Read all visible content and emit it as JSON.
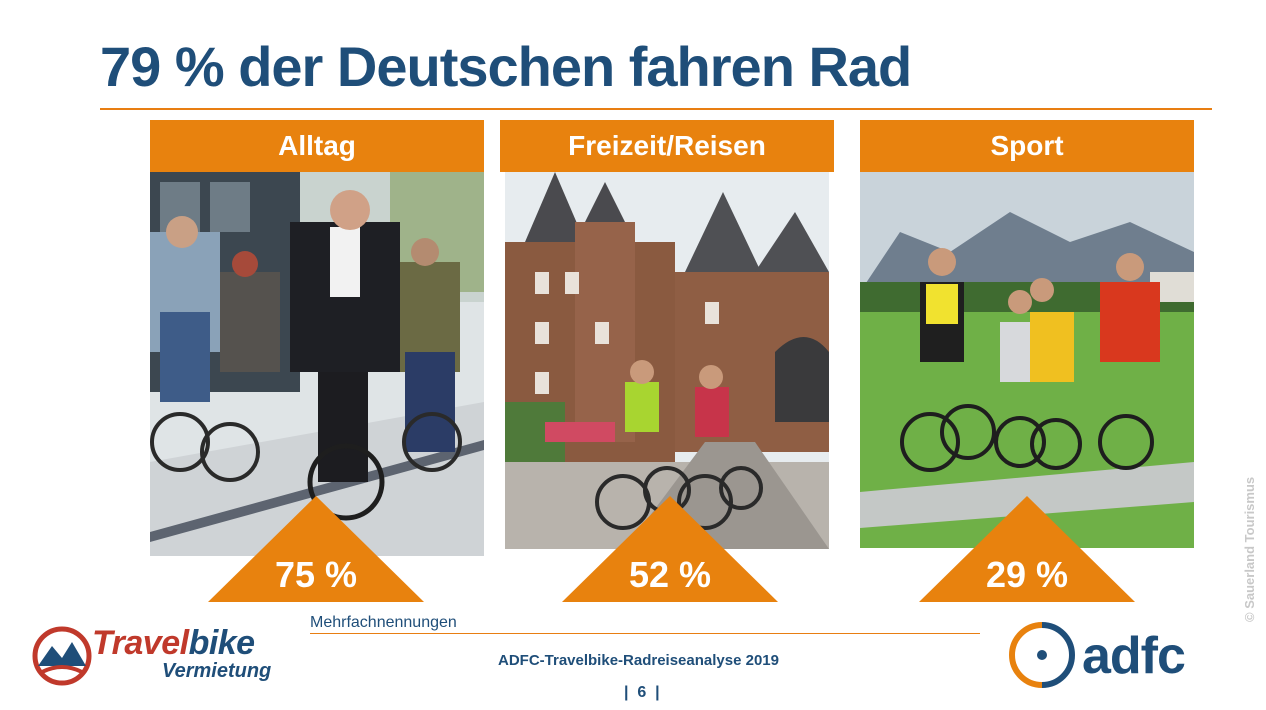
{
  "slide": {
    "title": "79 % der Deutschen fahren Rad",
    "note": "Mehrfachnennungen",
    "source": "ADFC-Travelbike-Radreiseanalyse 2019",
    "page_number": "|  6  |",
    "photo_credit": "© Sauerland Tourismus"
  },
  "panels": [
    {
      "label": "Alltag",
      "percent_text": "75 %",
      "percent_value": 75,
      "photo": "urban-commuter-cyclists"
    },
    {
      "label": "Freizeit/Reisen",
      "percent_text": "52 %",
      "percent_value": 52,
      "photo": "castle-touring-cyclists"
    },
    {
      "label": "Sport",
      "percent_text": "29 %",
      "percent_value": 29,
      "photo": "road-racing-cyclists"
    }
  ],
  "logos": {
    "travelbike": {
      "name_part1": "Travel",
      "name_part2": "bike",
      "subtitle": "Vermietung"
    },
    "adfc": {
      "name": "adfc"
    }
  },
  "colors": {
    "accent_orange": "#e8820e",
    "title_blue": "#1f4e79",
    "brand_red": "#c0392b"
  }
}
